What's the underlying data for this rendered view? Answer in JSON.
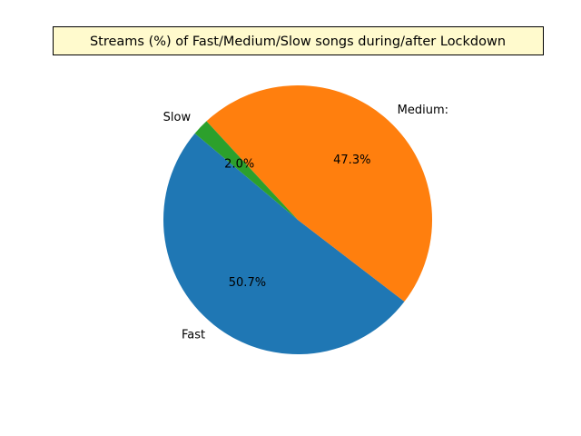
{
  "chart_data": {
    "type": "pie",
    "title": "Streams (%) of Fast/Medium/Slow songs during/after Lockdown",
    "categories": [
      "Fast",
      "Medium:",
      "Slow"
    ],
    "values": [
      50.7,
      47.3,
      2.0
    ],
    "value_labels": [
      "50.7%",
      "47.3%",
      "2.0%"
    ],
    "colors": [
      "#1f77b4",
      "#ff7f0e",
      "#2ca02c"
    ],
    "start_angle_deg": 140,
    "direction": "counterclockwise",
    "title_background": "#fffacd"
  }
}
